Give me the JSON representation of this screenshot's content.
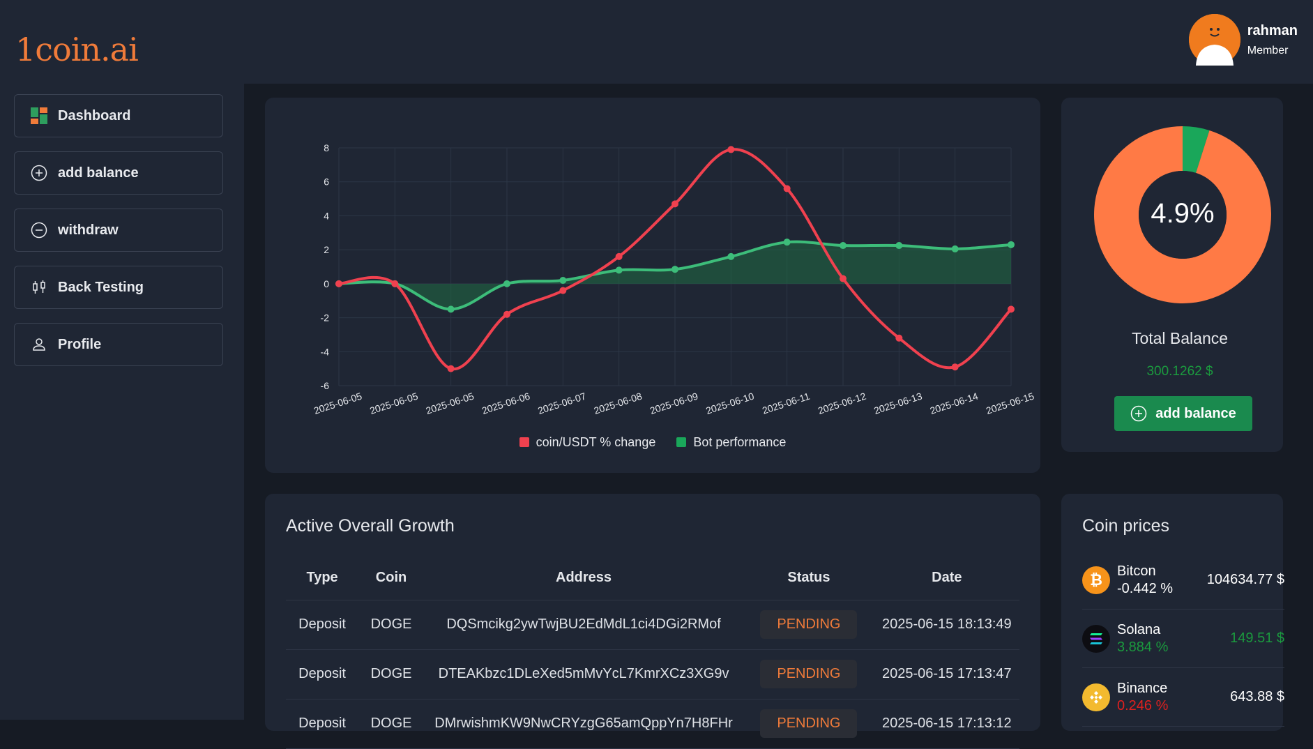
{
  "brand": {
    "logo_text": "1coin.ai"
  },
  "user": {
    "name": "rahman",
    "role": "Member"
  },
  "sidebar": {
    "items": [
      {
        "label": "Dashboard",
        "icon": "dashboard-icon"
      },
      {
        "label": "add balance",
        "icon": "plus-circle-icon"
      },
      {
        "label": "withdraw",
        "icon": "minus-circle-icon"
      },
      {
        "label": "Back Testing",
        "icon": "candlestick-icon"
      },
      {
        "label": "Profile",
        "icon": "user-icon"
      }
    ]
  },
  "colors": {
    "accent_orange": "#f07b3a",
    "coin_line": "#f0414f",
    "bot_line": "#3dbd7a",
    "positive": "#1b9a3e",
    "negative": "#e0201f"
  },
  "chart_data": {
    "type": "line",
    "x": [
      "2025-06-05",
      "2025-06-05",
      "2025-06-05",
      "2025-06-06",
      "2025-06-07",
      "2025-06-08",
      "2025-06-09",
      "2025-06-10",
      "2025-06-11",
      "2025-06-12",
      "2025-06-13",
      "2025-06-14",
      "2025-06-15"
    ],
    "series": [
      {
        "name": "coin/USDT % change",
        "color": "#f0414f",
        "values": [
          0.0,
          0.0,
          -5.0,
          -1.8,
          -0.4,
          1.6,
          4.7,
          7.9,
          5.6,
          0.3,
          -3.2,
          -4.9,
          -1.5
        ]
      },
      {
        "name": "Bot performance",
        "color": "#3dbd7a",
        "fill": true,
        "values": [
          0.0,
          0.0,
          -1.5,
          0.0,
          0.2,
          0.8,
          0.85,
          1.6,
          2.45,
          2.25,
          2.25,
          2.05,
          2.3
        ]
      }
    ],
    "yticks": [
      8,
      6,
      4,
      2,
      0,
      -2,
      -4,
      -6
    ],
    "ylim": [
      -6,
      8
    ],
    "grid": true,
    "legend": "bottom"
  },
  "balance": {
    "donut_pct": 4.9,
    "donut_label": "4.9%",
    "donut_colors": [
      "#ff7a45",
      "#1aa75a"
    ],
    "title": "Total Balance",
    "value": "300.1262 $",
    "add_button": "add balance"
  },
  "growth": {
    "title": "Active Overall Growth",
    "columns": [
      "Type",
      "Coin",
      "Address",
      "Status",
      "Date"
    ],
    "rows": [
      {
        "type": "Deposit",
        "coin": "DOGE",
        "address": "DQSmcikg2ywTwjBU2EdMdL1ci4DGi2RMof",
        "status": "PENDING",
        "date": "2025-06-15 18:13:49"
      },
      {
        "type": "Deposit",
        "coin": "DOGE",
        "address": "DTEAKbzc1DLeXed5mMvYcL7KmrXCz3XG9v",
        "status": "PENDING",
        "date": "2025-06-15 17:13:47"
      },
      {
        "type": "Deposit",
        "coin": "DOGE",
        "address": "DMrwishmKW9NwCRYzgG65amQppYn7H8FHr",
        "status": "PENDING",
        "date": "2025-06-15 17:13:12"
      }
    ]
  },
  "prices": {
    "title": "Coin prices",
    "coins": [
      {
        "name": "Bitcon",
        "change": "-0.442 %",
        "price": "104634.77 $",
        "icon": "bitcoin-icon",
        "change_color": "#ffffff",
        "price_color": "#ffffff"
      },
      {
        "name": "Solana",
        "change": "3.884 %",
        "price": "149.51 $",
        "icon": "solana-icon",
        "change_color": "#1b9a3e",
        "price_color": "#1b9a3e"
      },
      {
        "name": "Binance",
        "change": "0.246 %",
        "price": "643.88 $",
        "icon": "binance-icon",
        "change_color": "#e0201f",
        "price_color": "#ffffff"
      }
    ]
  }
}
